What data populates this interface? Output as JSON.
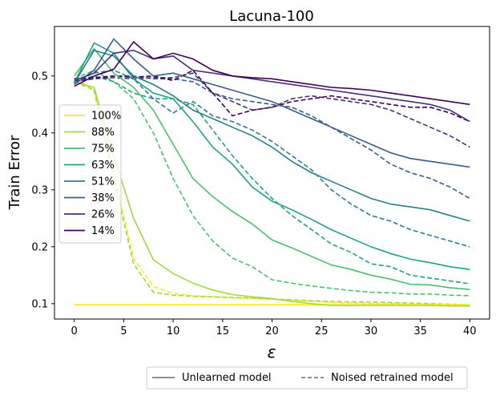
{
  "chart_data": {
    "type": "line",
    "title": "Lacuna-100",
    "xlabel": "ε",
    "ylabel": "Train Error",
    "xlim": [
      -2,
      42
    ],
    "ylim": [
      0.073,
      0.587
    ],
    "xticks": [
      0,
      5,
      10,
      15,
      20,
      25,
      30,
      35,
      40
    ],
    "yticks": [
      0.1,
      0.2,
      0.3,
      0.4,
      0.5
    ],
    "ytick_labels": [
      "0.1",
      "0.2",
      "0.3",
      "0.4",
      "0.5"
    ],
    "grid": false,
    "legend_position": "center-left",
    "style_legend_position": "bottom",
    "style_legend": [
      {
        "label": "Unlearned model",
        "dash": "solid"
      },
      {
        "label": "Noised retrained model",
        "dash": "dashed"
      }
    ],
    "x": [
      0,
      2,
      4,
      6,
      8,
      10,
      12,
      14,
      16,
      18,
      20,
      22,
      24,
      26,
      28,
      30,
      32,
      34,
      36,
      38,
      40
    ],
    "series": [
      {
        "name": "100%",
        "color": "#fde725",
        "values": [
          0.098,
          0.098,
          0.098,
          0.098,
          0.098,
          0.098,
          0.098,
          0.098,
          0.098,
          0.098,
          0.098,
          0.098,
          0.098,
          0.098,
          0.098,
          0.098,
          0.098,
          0.098,
          0.098,
          0.098,
          0.098
        ],
        "retrained": [
          0.497,
          0.475,
          0.33,
          0.18,
          0.13,
          0.118,
          0.114,
          0.112,
          0.11,
          0.109,
          0.108,
          0.106,
          0.104,
          0.102,
          0.101,
          0.1,
          0.1,
          0.099,
          0.098,
          0.098,
          0.097
        ]
      },
      {
        "name": "88%",
        "color": "#9fda3a",
        "values": [
          0.49,
          0.48,
          0.36,
          0.25,
          0.177,
          0.153,
          0.136,
          0.124,
          0.116,
          0.112,
          0.109,
          0.104,
          0.1,
          0.097,
          0.097,
          0.097,
          0.097,
          0.097,
          0.097,
          0.096,
          0.096
        ],
        "retrained": [
          0.49,
          0.475,
          0.32,
          0.17,
          0.12,
          0.115,
          0.113,
          0.112,
          0.111,
          0.11,
          0.108,
          0.107,
          0.105,
          0.104,
          0.103,
          0.103,
          0.102,
          0.101,
          0.1,
          0.099,
          0.098
        ]
      },
      {
        "name": "75%",
        "color": "#4ac16d",
        "values": [
          0.5,
          0.548,
          0.505,
          0.48,
          0.44,
          0.38,
          0.32,
          0.288,
          0.262,
          0.24,
          0.212,
          0.198,
          0.183,
          0.168,
          0.16,
          0.15,
          0.143,
          0.134,
          0.133,
          0.128,
          0.125
        ],
        "retrained": [
          0.495,
          0.51,
          0.49,
          0.46,
          0.4,
          0.32,
          0.255,
          0.21,
          0.18,
          0.165,
          0.142,
          0.136,
          0.131,
          0.127,
          0.123,
          0.12,
          0.119,
          0.117,
          0.117,
          0.115,
          0.114
        ]
      },
      {
        "name": "63%",
        "color": "#1fa187",
        "values": [
          0.488,
          0.558,
          0.54,
          0.495,
          0.47,
          0.46,
          0.42,
          0.375,
          0.345,
          0.305,
          0.28,
          0.265,
          0.248,
          0.23,
          0.215,
          0.2,
          0.188,
          0.178,
          0.172,
          0.165,
          0.16
        ],
        "retrained": [
          0.49,
          0.5,
          0.49,
          0.47,
          0.46,
          0.46,
          0.45,
          0.405,
          0.36,
          0.32,
          0.285,
          0.255,
          0.23,
          0.205,
          0.19,
          0.17,
          0.165,
          0.15,
          0.145,
          0.14,
          0.135
        ]
      },
      {
        "name": "51%",
        "color": "#277f8e",
        "values": [
          0.487,
          0.545,
          0.535,
          0.5,
          0.485,
          0.465,
          0.44,
          0.425,
          0.41,
          0.395,
          0.375,
          0.35,
          0.33,
          0.315,
          0.3,
          0.285,
          0.275,
          0.27,
          0.265,
          0.255,
          0.245
        ],
        "retrained": [
          0.49,
          0.505,
          0.51,
          0.495,
          0.46,
          0.435,
          0.455,
          0.43,
          0.42,
          0.405,
          0.385,
          0.36,
          0.335,
          0.3,
          0.275,
          0.255,
          0.245,
          0.23,
          0.22,
          0.21,
          0.2
        ]
      },
      {
        "name": "38%",
        "color": "#365c8d",
        "values": [
          0.485,
          0.51,
          0.565,
          0.53,
          0.5,
          0.505,
          0.495,
          0.485,
          0.475,
          0.465,
          0.455,
          0.44,
          0.425,
          0.41,
          0.395,
          0.38,
          0.365,
          0.355,
          0.35,
          0.345,
          0.34
        ],
        "retrained": [
          0.49,
          0.495,
          0.5,
          0.5,
          0.495,
          0.495,
          0.49,
          0.47,
          0.46,
          0.455,
          0.45,
          0.445,
          0.43,
          0.41,
          0.39,
          0.37,
          0.345,
          0.33,
          0.32,
          0.305,
          0.285
        ]
      },
      {
        "name": "26%",
        "color": "#46327e",
        "values": [
          0.492,
          0.505,
          0.54,
          0.545,
          0.53,
          0.535,
          0.51,
          0.505,
          0.5,
          0.495,
          0.49,
          0.485,
          0.48,
          0.475,
          0.47,
          0.465,
          0.46,
          0.455,
          0.45,
          0.44,
          0.42
        ],
        "retrained": [
          0.492,
          0.495,
          0.497,
          0.495,
          0.497,
          0.497,
          0.505,
          0.47,
          0.455,
          0.44,
          0.445,
          0.46,
          0.465,
          0.46,
          0.455,
          0.45,
          0.44,
          0.425,
          0.41,
          0.395,
          0.375
        ]
      },
      {
        "name": "14%",
        "color": "#440154",
        "values": [
          0.482,
          0.5,
          0.512,
          0.56,
          0.53,
          0.54,
          0.53,
          0.51,
          0.5,
          0.497,
          0.495,
          0.49,
          0.485,
          0.48,
          0.478,
          0.475,
          0.47,
          0.465,
          0.46,
          0.455,
          0.45
        ],
        "retrained": [
          0.495,
          0.497,
          0.5,
          0.498,
          0.5,
          0.492,
          0.51,
          0.47,
          0.43,
          0.44,
          0.445,
          0.455,
          0.46,
          0.465,
          0.46,
          0.455,
          0.45,
          0.445,
          0.445,
          0.435,
          0.42
        ]
      }
    ]
  }
}
